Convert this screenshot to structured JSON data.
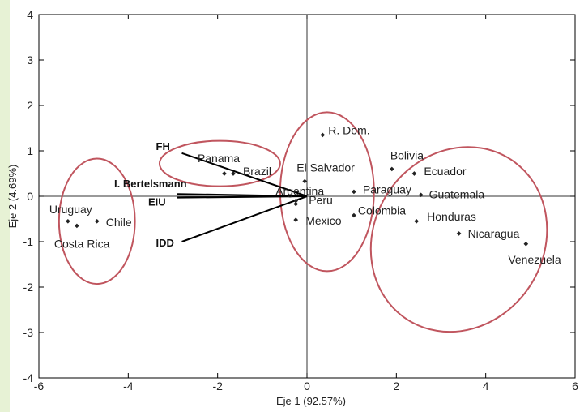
{
  "chart_data": {
    "type": "scatter",
    "xlabel": "Eje 1 (92.57%)",
    "ylabel": "Eje 2 (4.69%)",
    "xlim": [
      -6,
      6
    ],
    "ylim": [
      -4,
      4
    ],
    "xticks": [
      -6,
      -4,
      -2,
      0,
      2,
      4,
      6
    ],
    "yticks": [
      -4,
      -3,
      -2,
      -1,
      0,
      1,
      2,
      3,
      4
    ],
    "grid": false,
    "reference_lines": {
      "x": 0,
      "y": 0
    },
    "points": [
      {
        "label": "R. Dom.",
        "x": 0.35,
        "y": 1.35
      },
      {
        "label": "Bolivia",
        "x": 1.9,
        "y": 0.6
      },
      {
        "label": "Ecuador",
        "x": 2.4,
        "y": 0.5
      },
      {
        "label": "El Salvador",
        "x": -0.05,
        "y": 0.33
      },
      {
        "label": "Panama",
        "x": -1.85,
        "y": 0.5
      },
      {
        "label": "Brazil",
        "x": -1.65,
        "y": 0.5
      },
      {
        "label": "Argentina",
        "x": -0.25,
        "y": -0.1
      },
      {
        "label": "Paraguay",
        "x": 1.05,
        "y": 0.1
      },
      {
        "label": "Guatemala",
        "x": 2.55,
        "y": 0.03
      },
      {
        "label": "Peru",
        "x": -0.25,
        "y": -0.17
      },
      {
        "label": "Colombia",
        "x": 1.05,
        "y": -0.42
      },
      {
        "label": "Mexico",
        "x": -0.25,
        "y": -0.52
      },
      {
        "label": "Honduras",
        "x": 2.45,
        "y": -0.55
      },
      {
        "label": "Nicaragua",
        "x": 3.4,
        "y": -0.82
      },
      {
        "label": "Venezuela",
        "x": 4.9,
        "y": -1.05
      },
      {
        "label": "Uruguay",
        "x": -5.35,
        "y": -0.55
      },
      {
        "label": "Chile",
        "x": -4.7,
        "y": -0.55
      },
      {
        "label": "Costa Rica",
        "x": -5.15,
        "y": -0.65
      }
    ],
    "vectors": [
      {
        "label": "FH",
        "x": -2.8,
        "y": 0.95
      },
      {
        "label": "I. Bertelsmann",
        "x": -2.9,
        "y": 0.05
      },
      {
        "label": "EIU",
        "x": -2.9,
        "y": -0.03
      },
      {
        "label": "IDD",
        "x": -2.8,
        "y": -1.0
      }
    ],
    "clusters": [
      {
        "cx": -4.7,
        "cy": -0.55,
        "rx": 0.85,
        "ry": 1.38
      },
      {
        "cx": -1.95,
        "cy": 0.72,
        "rx": 1.35,
        "ry": 0.5
      },
      {
        "cx": 0.45,
        "cy": 0.1,
        "rx": 1.05,
        "ry": 1.75
      },
      {
        "cx": 3.4,
        "cy": -0.95,
        "rx": 1.9,
        "ry": 2.1,
        "rotate": 33
      }
    ],
    "colors": {
      "cluster": "#c0555e",
      "axes": "#000000",
      "points": "#222222"
    }
  }
}
